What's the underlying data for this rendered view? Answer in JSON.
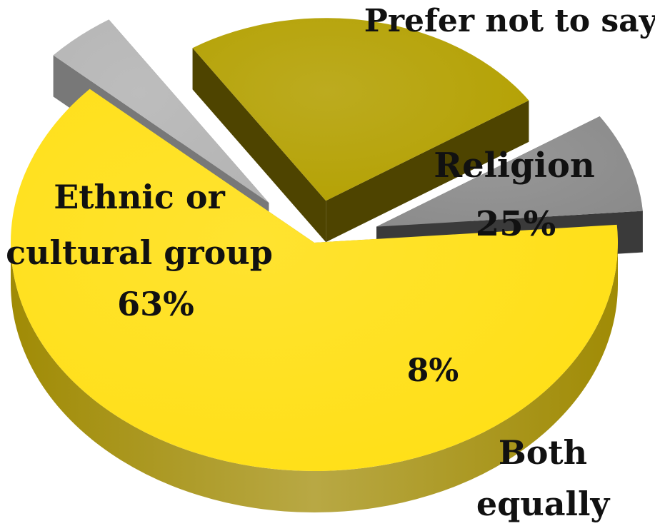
{
  "chart_data": {
    "type": "pie",
    "style": "3d-exploded",
    "slices": [
      {
        "label_lines": [
          "Ethnic or",
          "cultural group"
        ],
        "value": 63,
        "value_label": "63%",
        "color": "#FFDF14",
        "side_color": "#A08B05"
      },
      {
        "label_lines": [
          "Prefer not to say"
        ],
        "value": 4,
        "value_label": "",
        "color": "#B4B4B4",
        "side_color": "#787878"
      },
      {
        "label_lines": [
          "Religion"
        ],
        "value": 25,
        "value_label": "25%",
        "color": "#B3A000",
        "side_color": "#4E4400"
      },
      {
        "label_lines": [
          "Both",
          "equally"
        ],
        "value": 8,
        "value_label": "8%",
        "color": "#8A8A8A",
        "side_color": "#3A3A3A"
      }
    ]
  }
}
